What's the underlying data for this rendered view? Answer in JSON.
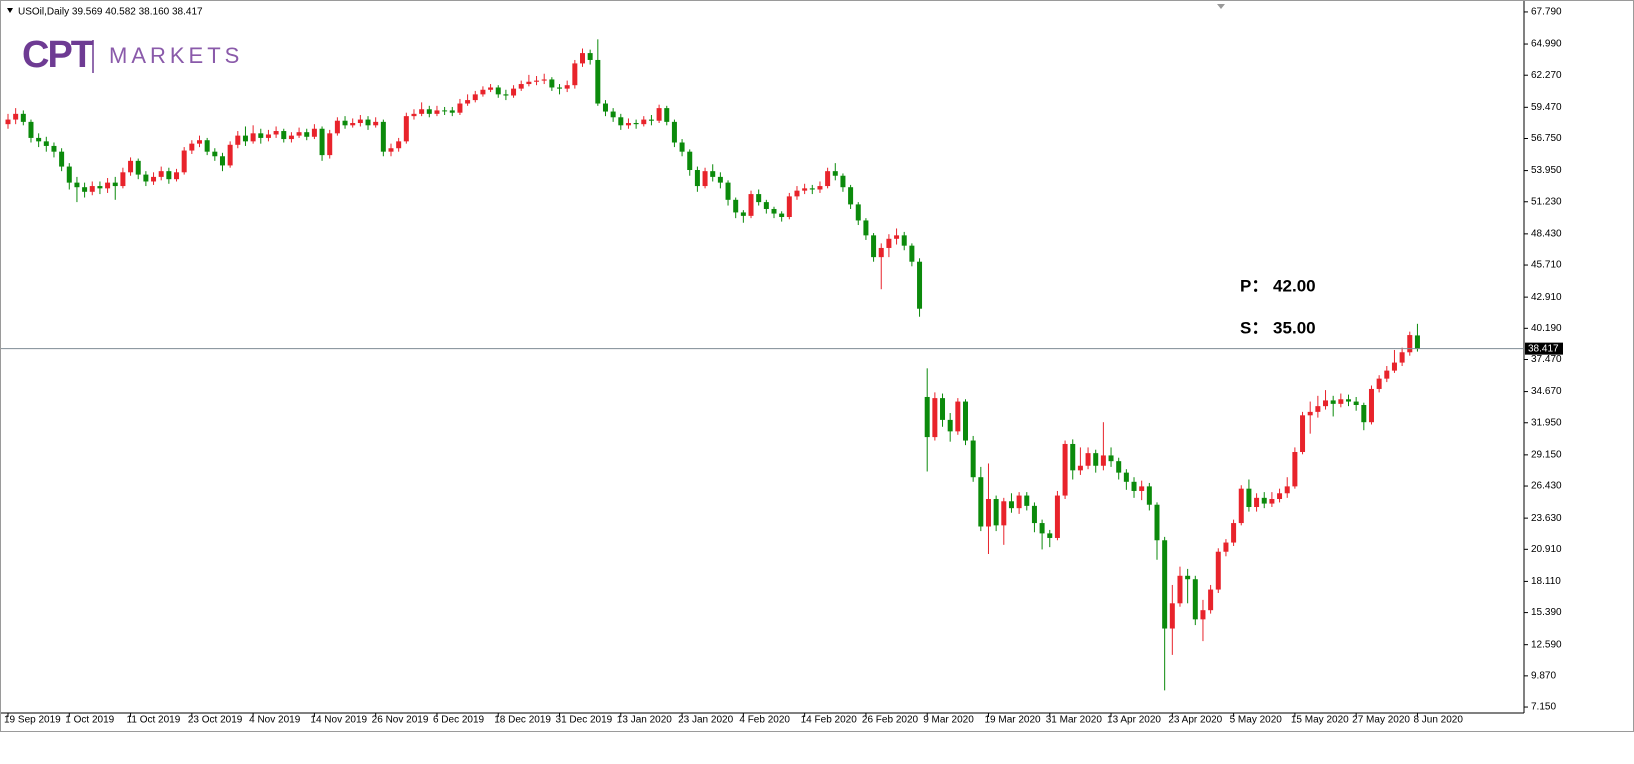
{
  "chart_data": {
    "type": "candlestick",
    "title": "USOil,Daily  39.569 40.582 38.160 38.417",
    "logo_mark": "CPT",
    "logo_text": "MARKETS",
    "annotations": [
      "P： 42.00",
      "S： 35.00"
    ],
    "up_color": "#e8232b",
    "down_color": "#0b8a0b",
    "price_line": 38.417,
    "ylim": [
      6.63,
      68.57
    ],
    "yticks": [
      {
        "value": 67.79,
        "label": "67.790"
      },
      {
        "value": 64.99,
        "label": "64.990"
      },
      {
        "value": 62.27,
        "label": "62.270"
      },
      {
        "value": 59.47,
        "label": "59.470"
      },
      {
        "value": 56.75,
        "label": "56.750"
      },
      {
        "value": 53.95,
        "label": "53.950"
      },
      {
        "value": 51.23,
        "label": "51.230"
      },
      {
        "value": 48.43,
        "label": "48.430"
      },
      {
        "value": 45.71,
        "label": "45.710"
      },
      {
        "value": 42.91,
        "label": "42.910"
      },
      {
        "value": 40.19,
        "label": "40.190"
      },
      {
        "value": 37.47,
        "label": "37.470"
      },
      {
        "value": 34.67,
        "label": "34.670"
      },
      {
        "value": 31.95,
        "label": "31.950"
      },
      {
        "value": 29.15,
        "label": "29.150"
      },
      {
        "value": 26.43,
        "label": "26.430"
      },
      {
        "value": 23.63,
        "label": "23.630"
      },
      {
        "value": 20.91,
        "label": "20.910"
      },
      {
        "value": 18.11,
        "label": "18.110"
      },
      {
        "value": 15.39,
        "label": "15.390"
      },
      {
        "value": 12.59,
        "label": "12.590"
      },
      {
        "value": 9.87,
        "label": "9.870"
      },
      {
        "value": 7.15,
        "label": "7.150"
      }
    ],
    "categories": [
      "19 Sep 2019",
      null,
      null,
      null,
      null,
      null,
      null,
      null,
      "1 Oct 2019",
      null,
      null,
      null,
      null,
      null,
      null,
      null,
      "11 Oct 2019",
      null,
      null,
      null,
      null,
      null,
      null,
      null,
      "23 Oct 2019",
      null,
      null,
      null,
      null,
      null,
      null,
      null,
      "4 Nov 2019",
      null,
      null,
      null,
      null,
      null,
      null,
      null,
      "14 Nov 2019",
      null,
      null,
      null,
      null,
      null,
      null,
      null,
      "26 Nov 2019",
      null,
      null,
      null,
      null,
      null,
      null,
      null,
      "6 Dec 2019",
      null,
      null,
      null,
      null,
      null,
      null,
      null,
      "18 Dec 2019",
      null,
      null,
      null,
      null,
      null,
      null,
      null,
      "31 Dec 2019",
      null,
      null,
      null,
      null,
      null,
      null,
      null,
      "13 Jan 2020",
      null,
      null,
      null,
      null,
      null,
      null,
      null,
      "23 Jan 2020",
      null,
      null,
      null,
      null,
      null,
      null,
      null,
      "4 Feb 2020",
      null,
      null,
      null,
      null,
      null,
      null,
      null,
      "14 Feb 2020",
      null,
      null,
      null,
      null,
      null,
      null,
      null,
      "26 Feb 2020",
      null,
      null,
      null,
      null,
      null,
      null,
      null,
      "9 Mar 2020",
      null,
      null,
      null,
      null,
      null,
      null,
      null,
      "19 Mar 2020",
      null,
      null,
      null,
      null,
      null,
      null,
      null,
      "31 Mar 2020",
      null,
      null,
      null,
      null,
      null,
      null,
      null,
      "13 Apr 2020",
      null,
      null,
      null,
      null,
      null,
      null,
      null,
      "23 Apr 2020",
      null,
      null,
      null,
      null,
      null,
      null,
      null,
      "5 May 2020",
      null,
      null,
      null,
      null,
      null,
      null,
      null,
      "15 May 2020",
      null,
      null,
      null,
      null,
      null,
      null,
      null,
      "27 May 2020",
      null,
      null,
      null,
      null,
      null,
      null,
      null,
      "8 Jun 2020"
    ],
    "open": [
      58.0,
      58.4,
      58.9,
      58.2,
      56.8,
      56.5,
      56.1,
      55.6,
      54.3,
      52.9,
      52.5,
      52.1,
      52.6,
      52.4,
      52.9,
      52.6,
      53.8,
      54.8,
      53.6,
      53.0,
      53.4,
      53.9,
      53.2,
      53.8,
      55.7,
      56.3,
      56.6,
      55.6,
      55.2,
      54.4,
      56.2,
      57.0,
      56.5,
      57.2,
      56.8,
      57.1,
      57.4,
      56.7,
      57.0,
      57.3,
      56.9,
      57.6,
      55.3,
      57.2,
      58.3,
      57.9,
      58.1,
      58.4,
      57.9,
      58.2,
      55.6,
      55.9,
      56.5,
      58.7,
      58.9,
      59.3,
      58.9,
      59.2,
      59.2,
      59.0,
      59.8,
      60.1,
      60.6,
      61.0,
      61.2,
      60.6,
      60.5,
      61.1,
      61.5,
      61.7,
      61.8,
      61.9,
      61.2,
      61.1,
      61.4,
      63.3,
      64.2,
      63.6,
      59.8,
      59.1,
      58.6,
      57.9,
      58.1,
      58.0,
      58.4,
      58.3,
      59.4,
      58.2,
      56.4,
      55.6,
      54.0,
      52.6,
      53.9,
      53.4,
      52.9,
      51.4,
      50.3,
      50.0,
      51.9,
      51.2,
      50.6,
      50.2,
      49.9,
      51.7,
      52.2,
      52.4,
      52.3,
      52.6,
      53.9,
      53.5,
      52.5,
      51.0,
      49.6,
      48.3,
      46.4,
      47.2,
      48.0,
      48.3,
      47.4,
      46.0,
      34.2,
      30.7,
      34.1,
      32.2,
      31.2,
      33.8,
      30.4,
      27.2,
      22.9,
      25.3,
      23.0,
      25.1,
      24.5,
      25.6,
      24.7,
      23.2,
      22.3,
      21.9,
      25.6,
      30.1,
      27.8,
      28.2,
      29.3,
      28.2,
      29.1,
      28.6,
      27.6,
      26.8,
      26.0,
      26.4,
      24.8,
      21.7,
      14.0,
      16.2,
      18.6,
      18.3,
      14.8,
      15.6,
      17.4,
      20.7,
      21.5,
      23.2,
      26.2,
      24.6,
      25.4,
      24.9,
      25.3,
      25.8,
      26.4,
      29.4,
      32.6,
      32.9,
      33.4,
      33.9,
      33.6,
      34.0,
      33.8,
      33.5,
      32.0,
      34.9,
      35.8,
      36.5,
      37.2,
      38.1,
      39.569
    ],
    "high": [
      58.9,
      59.4,
      59.2,
      58.4,
      57.2,
      56.9,
      56.4,
      55.9,
      54.6,
      53.4,
      52.9,
      53.0,
      53.0,
      53.3,
      53.4,
      54.2,
      55.1,
      55.0,
      53.9,
      53.8,
      54.3,
      54.2,
      54.1,
      56.0,
      56.6,
      57.0,
      56.8,
      55.9,
      55.5,
      56.5,
      57.4,
      57.8,
      57.9,
      57.6,
      57.5,
      57.8,
      57.6,
      57.3,
      57.7,
      57.6,
      58.0,
      57.8,
      57.5,
      58.6,
      58.7,
      58.5,
      58.8,
      58.7,
      58.6,
      58.4,
      56.3,
      56.8,
      59.0,
      59.3,
      59.9,
      59.6,
      59.6,
      59.5,
      59.5,
      60.2,
      60.6,
      60.9,
      61.3,
      61.5,
      61.4,
      61.0,
      61.4,
      61.8,
      62.3,
      62.2,
      62.4,
      62.1,
      61.5,
      61.8,
      63.6,
      64.6,
      64.5,
      65.4,
      60.1,
      59.4,
      58.9,
      58.5,
      58.4,
      58.7,
      58.8,
      59.7,
      59.6,
      58.4,
      56.7,
      55.8,
      54.3,
      54.2,
      54.5,
      53.8,
      53.1,
      51.6,
      50.5,
      52.2,
      52.3,
      51.4,
      50.8,
      50.4,
      52.0,
      52.6,
      52.8,
      52.7,
      53.0,
      54.2,
      54.6,
      53.7,
      52.7,
      51.2,
      49.8,
      48.5,
      47.6,
      48.4,
      48.9,
      48.6,
      47.6,
      46.3,
      36.7,
      34.6,
      34.5,
      32.8,
      34.1,
      34.0,
      30.8,
      28.1,
      28.4,
      25.6,
      25.4,
      25.8,
      25.9,
      25.9,
      25.0,
      23.5,
      22.6,
      26.0,
      30.4,
      30.5,
      29.8,
      29.8,
      29.6,
      32.0,
      29.8,
      28.9,
      27.9,
      27.2,
      26.9,
      26.7,
      25.0,
      22.0,
      17.8,
      19.4,
      19.2,
      18.6,
      16.5,
      17.8,
      21.0,
      21.8,
      23.5,
      26.5,
      27.0,
      25.8,
      25.9,
      25.9,
      26.2,
      27.2,
      29.8,
      32.9,
      33.8,
      34.3,
      34.8,
      34.3,
      34.5,
      34.4,
      34.2,
      33.7,
      35.2,
      36.1,
      36.9,
      38.3,
      38.5,
      39.9,
      40.582
    ],
    "low": [
      57.6,
      58.0,
      57.9,
      56.4,
      56.0,
      55.6,
      55.1,
      53.9,
      52.3,
      51.2,
      51.6,
      51.8,
      51.9,
      52.0,
      51.4,
      52.4,
      53.5,
      53.2,
      52.6,
      52.7,
      53.1,
      52.8,
      53.0,
      53.6,
      55.4,
      56.0,
      55.3,
      54.8,
      53.9,
      54.2,
      55.9,
      56.1,
      56.3,
      56.3,
      56.5,
      56.8,
      56.4,
      56.4,
      56.8,
      56.6,
      56.7,
      54.8,
      55.0,
      57.0,
      57.6,
      57.7,
      57.8,
      57.5,
      57.7,
      55.2,
      55.2,
      55.6,
      56.3,
      58.4,
      58.7,
      58.6,
      58.7,
      58.8,
      58.7,
      58.8,
      59.6,
      59.9,
      60.4,
      60.8,
      60.3,
      60.1,
      60.3,
      60.9,
      61.3,
      61.4,
      61.5,
      60.9,
      60.6,
      60.8,
      61.1,
      63.0,
      63.2,
      59.6,
      58.7,
      58.2,
      57.5,
      57.6,
      57.6,
      57.8,
      57.9,
      58.1,
      57.9,
      56.0,
      55.2,
      53.5,
      52.1,
      52.4,
      53.0,
      52.4,
      50.9,
      49.8,
      49.4,
      49.8,
      50.9,
      50.2,
      49.8,
      49.5,
      49.7,
      51.4,
      51.9,
      51.9,
      52.0,
      52.4,
      53.1,
      52.1,
      50.6,
      49.2,
      47.9,
      46.0,
      43.6,
      46.4,
      47.5,
      47.0,
      45.6,
      41.2,
      27.7,
      30.4,
      31.6,
      30.3,
      30.9,
      30.0,
      26.8,
      22.5,
      20.5,
      22.5,
      21.3,
      24.1,
      24.0,
      24.3,
      22.4,
      20.9,
      21.1,
      21.7,
      25.3,
      27.0,
      27.4,
      27.9,
      27.6,
      27.8,
      28.1,
      27.0,
      26.1,
      25.4,
      25.2,
      24.3,
      20.0,
      8.6,
      11.7,
      15.9,
      16.2,
      14.3,
      12.9,
      15.3,
      17.1,
      20.3,
      21.2,
      23.0,
      24.2,
      24.2,
      24.5,
      24.6,
      25.0,
      25.4,
      26.2,
      29.2,
      31.0,
      32.4,
      33.1,
      32.5,
      33.3,
      33.4,
      33.0,
      31.3,
      31.8,
      34.6,
      35.5,
      36.3,
      36.9,
      37.8,
      38.16
    ],
    "close": [
      58.4,
      58.9,
      58.2,
      56.8,
      56.5,
      56.1,
      55.6,
      54.3,
      52.9,
      52.5,
      52.1,
      52.6,
      52.4,
      52.9,
      52.6,
      53.8,
      54.8,
      53.6,
      53.0,
      53.4,
      53.9,
      53.2,
      53.8,
      55.7,
      56.3,
      56.6,
      55.6,
      55.2,
      54.4,
      56.2,
      57.0,
      56.5,
      57.2,
      56.8,
      57.1,
      57.4,
      56.7,
      57.0,
      57.3,
      56.9,
      57.6,
      55.3,
      57.2,
      58.3,
      57.9,
      58.1,
      58.4,
      57.9,
      58.2,
      55.6,
      55.9,
      56.5,
      58.7,
      58.9,
      59.3,
      58.9,
      59.2,
      59.2,
      59.0,
      59.8,
      60.1,
      60.6,
      61.0,
      61.2,
      60.6,
      60.5,
      61.1,
      61.5,
      61.7,
      61.8,
      61.9,
      61.2,
      61.1,
      61.4,
      63.3,
      64.2,
      63.6,
      59.8,
      59.1,
      58.6,
      57.9,
      58.1,
      58.0,
      58.4,
      58.3,
      59.4,
      58.2,
      56.4,
      55.6,
      54.0,
      52.6,
      53.9,
      53.4,
      52.9,
      51.4,
      50.3,
      50.0,
      51.9,
      51.2,
      50.6,
      50.2,
      49.9,
      51.7,
      52.2,
      52.4,
      52.3,
      52.6,
      53.9,
      53.5,
      52.5,
      51.0,
      49.6,
      48.3,
      46.4,
      47.2,
      48.0,
      48.3,
      47.4,
      46.0,
      41.9,
      30.7,
      34.1,
      32.2,
      31.2,
      33.8,
      30.4,
      27.2,
      22.9,
      25.3,
      23.0,
      25.1,
      24.5,
      25.6,
      24.7,
      23.2,
      22.3,
      21.9,
      25.6,
      30.1,
      27.8,
      28.2,
      29.3,
      28.2,
      29.1,
      28.6,
      27.6,
      26.8,
      26.0,
      26.4,
      24.8,
      21.7,
      14.0,
      16.2,
      18.6,
      18.3,
      14.8,
      15.6,
      17.4,
      20.7,
      21.5,
      23.2,
      26.2,
      24.6,
      25.4,
      24.9,
      25.3,
      25.8,
      26.4,
      29.4,
      32.6,
      32.9,
      33.4,
      33.9,
      33.6,
      34.0,
      33.8,
      33.5,
      32.0,
      34.9,
      35.8,
      36.5,
      37.2,
      38.1,
      39.6,
      38.417
    ]
  }
}
